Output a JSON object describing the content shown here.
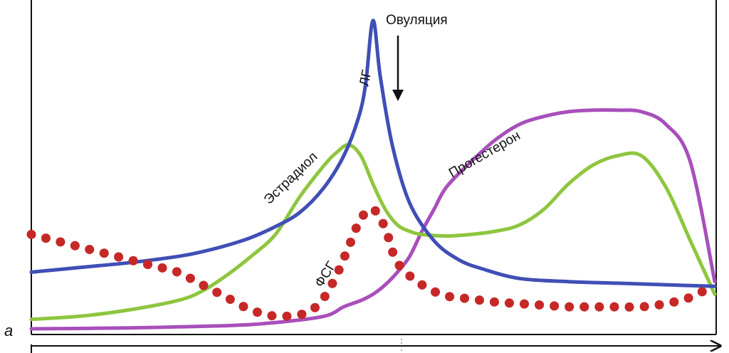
{
  "panel_label": "а",
  "annotation": {
    "text": "Овуляция"
  },
  "chart_data": {
    "type": "line",
    "title": "",
    "xlabel": "",
    "ylabel": "",
    "xlim": [
      0,
      28
    ],
    "ylim": [
      0,
      100
    ],
    "ovulation_day": 14,
    "series": [
      {
        "name": "ЛГ",
        "color": "#3f4fb5",
        "style": "solid",
        "x": [
          0,
          2,
          4,
          6,
          7,
          8,
          9,
          10,
          11,
          12,
          12.8,
          13.4,
          13.7,
          14,
          14.3,
          14.8,
          15.5,
          16.5,
          17.5,
          18.5,
          20,
          22,
          24,
          26,
          28
        ],
        "y": [
          18,
          19.5,
          21,
          23,
          24.5,
          26.5,
          29,
          32.5,
          37,
          45,
          55,
          67,
          78,
          98,
          80,
          58,
          40,
          28,
          22,
          19,
          16,
          15,
          14.5,
          14,
          13.5
        ]
      },
      {
        "name": "Эстрадиол",
        "color": "#8ec63f",
        "style": "solid",
        "x": [
          0,
          2,
          4,
          6,
          7,
          8,
          9,
          10,
          11,
          12,
          12.5,
          13,
          13.5,
          14,
          14.5,
          15,
          15.5,
          16,
          17,
          18,
          19,
          20,
          21,
          22,
          23,
          24,
          25,
          26,
          27,
          28
        ],
        "y": [
          3,
          4,
          6,
          9,
          12,
          17,
          23,
          30,
          42,
          52,
          56,
          58.5,
          55,
          46,
          38,
          33,
          31,
          30,
          29.5,
          30,
          31,
          33,
          38,
          46,
          52,
          55,
          55,
          45,
          28,
          11
        ]
      },
      {
        "name": "Прогестерон",
        "color": "#a84fbb",
        "style": "solid",
        "x": [
          0,
          4,
          8,
          10,
          12,
          12.8,
          13.5,
          14,
          14.5,
          15,
          15.5,
          16,
          16.5,
          17,
          18,
          19,
          20,
          21,
          22,
          23,
          24,
          25,
          26,
          27,
          28
        ],
        "y": [
          0,
          0.3,
          1,
          2,
          4,
          7,
          9,
          11,
          14,
          18,
          23,
          31,
          38,
          45,
          53,
          60,
          65,
          67.5,
          69,
          69.5,
          69.5,
          69,
          65,
          53,
          15
        ]
      },
      {
        "name": "ФСГ",
        "color": "#c62828",
        "style": "dotted",
        "x": [
          0,
          1,
          2,
          3,
          4,
          5,
          6,
          7,
          8,
          9,
          10,
          11,
          11.5,
          12,
          12.5,
          13,
          13.5,
          14,
          14.5,
          15,
          16,
          17,
          18,
          19,
          20,
          21,
          22,
          23,
          24,
          25,
          26,
          27,
          28
        ],
        "y": [
          30,
          28,
          26,
          24,
          22,
          20,
          18,
          14,
          10,
          6,
          4,
          4.5,
          6,
          10,
          17,
          26,
          35,
          38,
          32,
          21,
          14,
          10.5,
          9.5,
          8.5,
          8,
          7.5,
          7,
          7,
          7,
          7,
          8,
          10,
          14
        ]
      }
    ],
    "curve_labels": {
      "lh": "ЛГ",
      "estradiol": "Эстрадиол",
      "progesterone": "Прогестерон",
      "fsh": "ФСГ"
    }
  }
}
